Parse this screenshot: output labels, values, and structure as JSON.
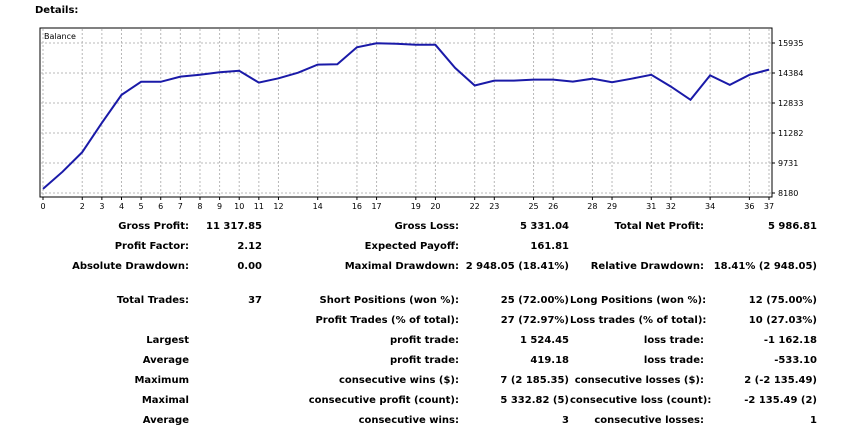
{
  "header": {
    "title": "Details:"
  },
  "chart_data": {
    "type": "line",
    "title": "Balance",
    "x": [
      0,
      1,
      2,
      3,
      4,
      5,
      6,
      7,
      8,
      9,
      10,
      11,
      12,
      13,
      14,
      15,
      16,
      17,
      18,
      19,
      20,
      21,
      22,
      23,
      24,
      25,
      26,
      27,
      28,
      29,
      30,
      31,
      32,
      33,
      34,
      35,
      36,
      37
    ],
    "x_ticks": [
      0,
      2,
      3,
      4,
      5,
      6,
      7,
      8,
      9,
      10,
      11,
      12,
      14,
      16,
      17,
      19,
      20,
      22,
      23,
      25,
      26,
      28,
      29,
      31,
      32,
      34,
      36,
      37
    ],
    "values": [
      8390,
      9280,
      10290,
      11810,
      13250,
      13930,
      13930,
      14200,
      14290,
      14420,
      14500,
      13890,
      14110,
      14400,
      14820,
      14840,
      15710,
      15920,
      15900,
      15840,
      15840,
      14650,
      13740,
      13990,
      13990,
      14040,
      14040,
      13940,
      14090,
      13910,
      14090,
      14290,
      13680,
      13000,
      14260,
      13770,
      14290,
      14560
    ],
    "y_ticks": [
      "15935",
      "14384",
      "12833",
      "11282",
      "9731",
      "8180"
    ],
    "ylim": [
      8180,
      16400
    ],
    "grid": true,
    "line_color": "#1a1aa8"
  },
  "stats": {
    "gross_profit": {
      "label": "Gross Profit:",
      "value": "11 317.85"
    },
    "gross_loss": {
      "label": "Gross Loss:",
      "value": "5 331.04"
    },
    "total_net_profit": {
      "label": "Total Net Profit:",
      "value": "5 986.81"
    },
    "profit_factor": {
      "label": "Profit Factor:",
      "value": "2.12"
    },
    "expected_payoff": {
      "label": "Expected Payoff:",
      "value": "161.81"
    },
    "absolute_drawdown": {
      "label": "Absolute Drawdown:",
      "value": "0.00"
    },
    "maximal_drawdown": {
      "label": "Maximal Drawdown:",
      "value": "2 948.05 (18.41%)"
    },
    "relative_drawdown": {
      "label": "Relative Drawdown:",
      "value": "18.41% (2 948.05)"
    },
    "total_trades": {
      "label": "Total Trades:",
      "value": "37"
    },
    "short_positions": {
      "label": "Short Positions (won %):",
      "value": "25 (72.00%)"
    },
    "long_positions": {
      "label": "Long Positions (won %):",
      "value": "12 (75.00%)"
    },
    "profit_trades": {
      "label": "Profit Trades (% of total):",
      "value": "27 (72.97%)"
    },
    "loss_trades": {
      "label": "Loss trades (% of total):",
      "value": "10 (27.03%)"
    },
    "largest": {
      "label": "Largest",
      "profit_label": "profit trade:",
      "profit_value": "1 524.45",
      "loss_label": "loss trade:",
      "loss_value": "-1 162.18"
    },
    "average": {
      "label": "Average",
      "profit_label": "profit trade:",
      "profit_value": "419.18",
      "loss_label": "loss trade:",
      "loss_value": "-533.10"
    },
    "maximum": {
      "label": "Maximum",
      "profit_label": "consecutive wins ($):",
      "profit_value": "7 (2 185.35)",
      "loss_label": "consecutive losses ($):",
      "loss_value": "2 (-2 135.49)"
    },
    "maximal": {
      "label": "Maximal",
      "profit_label": "consecutive profit (count):",
      "profit_value": "5 332.82 (5)",
      "loss_label": "consecutive loss (count):",
      "loss_value": "-2 135.49 (2)"
    },
    "average_consecutive": {
      "label": "Average",
      "profit_label": "consecutive wins:",
      "profit_value": "3",
      "loss_label": "consecutive losses:",
      "loss_value": "1"
    }
  }
}
